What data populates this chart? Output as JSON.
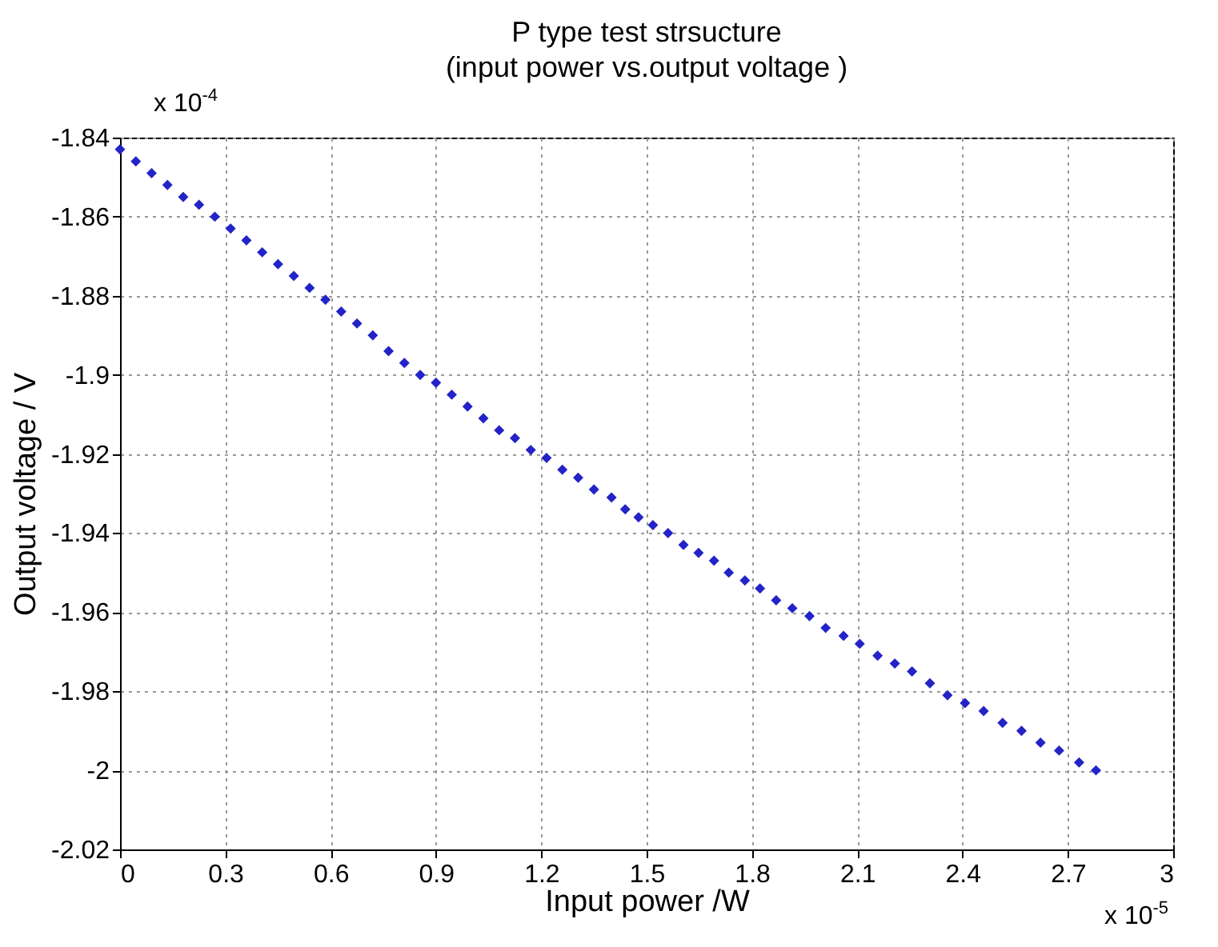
{
  "chart_data": {
    "type": "scatter",
    "title": "P type test strsucture",
    "subtitle": "(input power vs.output voltage )",
    "xlabel": "Input power /W",
    "ylabel": "Output voltage / V",
    "annotations": [
      "x 10$^{-4}$",
      "x 10$^{-5}$"
    ],
    "xlim": [
      0,
      3
    ],
    "xticks": [
      0,
      0.3,
      0.6,
      0.9,
      1.2,
      1.5,
      1.8,
      2.1,
      2.4,
      2.7,
      3
    ],
    "ylim": [
      -2.02,
      -1.84
    ],
    "yticks": [
      -2.02,
      -2,
      -1.98,
      -1.96,
      -1.94,
      -1.92,
      -1.9,
      -1.88,
      -1.86,
      -1.84
    ],
    "grid": true,
    "marker": "diamond",
    "series": [
      {
        "color": "#2323c8",
        "x": [
          0,
          0.045,
          0.09,
          0.135,
          0.18,
          0.225,
          0.27,
          0.315,
          0.36,
          0.405,
          0.45,
          0.495,
          0.54,
          0.585,
          0.63,
          0.675,
          0.72,
          0.765,
          0.81,
          0.855,
          0.9,
          0.945,
          0.99,
          1.035,
          1.08,
          1.125,
          1.17,
          1.215,
          1.26,
          1.305,
          1.35,
          1.4,
          1.439,
          1.477,
          1.518,
          1.561,
          1.605,
          1.648,
          1.692,
          1.734,
          1.78,
          1.823,
          1.869,
          1.915,
          1.964,
          2.01,
          2.061,
          2.107,
          2.158,
          2.207,
          2.256,
          2.307,
          2.357,
          2.407,
          2.46,
          2.514,
          2.568,
          2.622,
          2.675,
          2.732,
          2.78
        ],
        "values": [
          -1.843,
          -1.846,
          -1.849,
          -1.852,
          -1.855,
          -1.857,
          -1.86,
          -1.863,
          -1.866,
          -1.869,
          -1.872,
          -1.875,
          -1.878,
          -1.881,
          -1.884,
          -1.887,
          -1.89,
          -1.894,
          -1.897,
          -1.9,
          -1.902,
          -1.905,
          -1.908,
          -1.911,
          -1.914,
          -1.916,
          -1.919,
          -1.921,
          -1.924,
          -1.926,
          -1.929,
          -1.931,
          -1.934,
          -1.936,
          -1.938,
          -1.94,
          -1.943,
          -1.945,
          -1.947,
          -1.95,
          -1.952,
          -1.954,
          -1.957,
          -1.959,
          -1.961,
          -1.964,
          -1.966,
          -1.968,
          -1.971,
          -1.973,
          -1.975,
          -1.978,
          -1.981,
          -1.983,
          -1.985,
          -1.988,
          -1.99,
          -1.993,
          -1.995,
          -1.998,
          -2
        ]
      }
    ]
  }
}
